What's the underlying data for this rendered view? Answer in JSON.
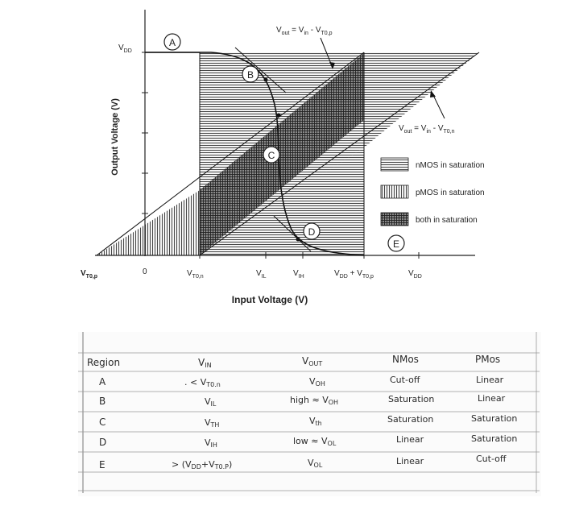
{
  "diagram": {
    "y_axis_label": "Output Voltage (V)",
    "x_axis_label": "Input Voltage (V)",
    "vdd_y_label": "V",
    "vdd_y_sub": "DD",
    "x_ticks": {
      "vtop": "V",
      "vtop_sub": "T0,p",
      "zero": "0",
      "vton": "V",
      "vton_sub": "T0,n",
      "vil": "V",
      "vil_sub": "IL",
      "vih": "V",
      "vih_sub": "IH",
      "vddvtp_a": "V",
      "vddvtp_a_sub": "DD",
      "vddvtp_b": " + V",
      "vddvtp_b_sub": "T0,p",
      "vdd": "V",
      "vdd_sub": "DD"
    },
    "eq_top": {
      "v": "V",
      "out": "out",
      "mid": " = V",
      "in": "in",
      "minus": " - V",
      "t": "T0,p"
    },
    "eq_right": {
      "v": "V",
      "out": "out",
      "mid": " = V",
      "in": "in",
      "minus": " - V",
      "t": "T0,n"
    },
    "regions": {
      "a": "A",
      "b": "B",
      "c": "C",
      "d": "D",
      "e": "E"
    },
    "legend": [
      {
        "label": "nMOS in saturation"
      },
      {
        "label": "pMOS in saturation"
      },
      {
        "label": "both in saturation"
      }
    ]
  },
  "table": {
    "headers": {
      "region": "Region",
      "vin": "V",
      "vin_sub": "IN",
      "vout": "V",
      "vout_sub": "OUT",
      "nmos": "NMos",
      "pmos": "PMos"
    },
    "rows": [
      {
        "region": "A",
        "vin": ". < V",
        "vin_sub": "T0.n",
        "vout": "V",
        "vout_sub": "OH",
        "vout_pre": "",
        "nmos": "Cut-off",
        "pmos": "Linear"
      },
      {
        "region": "B",
        "vin": "V",
        "vin_sub": "IL",
        "vout": "V",
        "vout_sub": "OH",
        "vout_pre": "high ≈ ",
        "nmos": "Saturation",
        "pmos": "Linear"
      },
      {
        "region": "C",
        "vin": "V",
        "vin_sub": "TH",
        "vout": "V",
        "vout_sub": "th",
        "vout_pre": "",
        "nmos": "Saturation",
        "pmos": "Saturation"
      },
      {
        "region": "D",
        "vin": "V",
        "vin_sub": "IH",
        "vout": "V",
        "vout_sub": "OL",
        "vout_pre": "low ≈ ",
        "nmos": "Linear",
        "pmos": "Saturation"
      },
      {
        "region": "E",
        "vin": "> (V",
        "vin_sub": "DD",
        "vin_post": "+V",
        "vin_sub2": "T0.P",
        "vin_end": ")",
        "vout": "V",
        "vout_sub": "OL",
        "vout_pre": "",
        "nmos": "Linear",
        "pmos": "Cut-off"
      }
    ]
  }
}
